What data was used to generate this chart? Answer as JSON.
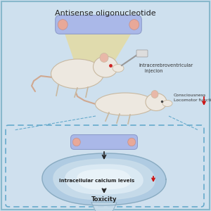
{
  "title": "Antisense oligonucleotide",
  "background_color": "#cee0ee",
  "border_color": "#88b8cc",
  "pill_main_color": "#aab8e8",
  "pill_end_color": "#e8a898",
  "pill_main_color2": "#aab8e8",
  "cone_color": "#f0d878",
  "cone_alpha": 0.55,
  "label_injection": "Intracerebroventricular\n    injecion",
  "label_consciousness": "Consciousness\nLocomotor function",
  "label_calcium": "Intracellular calcium levels",
  "label_toxicity": "Toxicity",
  "dashed_box_color": "#66aacc",
  "arrow_color": "#222222",
  "red_arrow_color": "#cc1111",
  "cell_outer_color": "#aac8e0",
  "cell_mid_color": "#c8dcea",
  "cell_inner_color": "#dceaf4",
  "cell_core_color": "#e8f2f8",
  "mouse_body_color": "#ede8e0",
  "mouse_outline_color": "#c8b8a0",
  "mouse_ear_color": "#e8b8a8",
  "mouse_tail_color": "#d0a890"
}
